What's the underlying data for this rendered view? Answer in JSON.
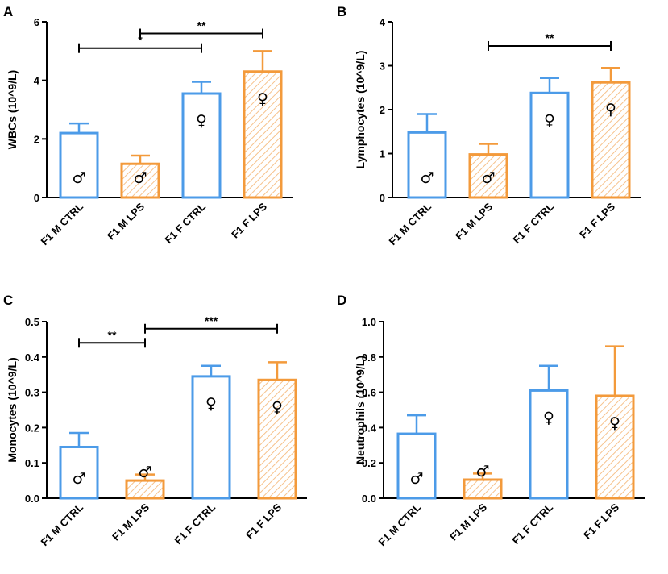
{
  "colors": {
    "ctrl": "#4c9be8",
    "lps": "#f39a3b",
    "lps_hatch": "#f6c28c",
    "axis": "#000000"
  },
  "symbols": {
    "male": "♂",
    "female": "♀"
  },
  "chart_data": [
    {
      "panel": "A",
      "type": "bar",
      "ylabel": "WBCs (10^9/L)",
      "categories": [
        "F1 M CTRL",
        "F1 M LPS",
        "F1 F CTRL",
        "F1 F LPS"
      ],
      "values": [
        2.2,
        1.15,
        3.55,
        4.3
      ],
      "errors": [
        0.33,
        0.28,
        0.4,
        0.7
      ],
      "groups": [
        "ctrl",
        "lps",
        "ctrl",
        "lps"
      ],
      "sex": [
        "male",
        "male",
        "female",
        "female"
      ],
      "ylim": [
        0,
        6
      ],
      "yticks": [
        "0",
        "2",
        "4",
        "6"
      ],
      "tick_values": [
        0,
        2,
        4,
        6
      ],
      "significance": [
        {
          "from": 0,
          "to": 2,
          "level": 5.1,
          "label": "*"
        },
        {
          "from": 1,
          "to": 3,
          "level": 5.6,
          "label": "**"
        }
      ]
    },
    {
      "panel": "B",
      "type": "bar",
      "ylabel": "Lymphocytes (10^9/L)",
      "categories": [
        "F1 M CTRL",
        "F1 M LPS",
        "F1 F CTRL",
        "F1 F LPS"
      ],
      "values": [
        1.48,
        0.98,
        2.38,
        2.62
      ],
      "errors": [
        0.42,
        0.24,
        0.34,
        0.33
      ],
      "groups": [
        "ctrl",
        "lps",
        "ctrl",
        "lps"
      ],
      "sex": [
        "male",
        "male",
        "female",
        "female"
      ],
      "ylim": [
        0,
        4
      ],
      "yticks": [
        "0",
        "1",
        "2",
        "3",
        "4"
      ],
      "tick_values": [
        0,
        1,
        2,
        3,
        4
      ],
      "significance": [
        {
          "from": 1,
          "to": 3,
          "level": 3.45,
          "label": "**"
        }
      ]
    },
    {
      "panel": "C",
      "type": "bar",
      "ylabel": "Monocytes (10^9/L)",
      "categories": [
        "F1 M CTRL",
        "F1 M LPS",
        "F1 F CTRL",
        "F1 F LPS"
      ],
      "values": [
        0.145,
        0.05,
        0.345,
        0.335
      ],
      "errors": [
        0.04,
        0.017,
        0.03,
        0.05
      ],
      "groups": [
        "ctrl",
        "lps",
        "ctrl",
        "lps"
      ],
      "sex": [
        "male",
        "male",
        "female",
        "female"
      ],
      "ylim": [
        0,
        0.5
      ],
      "yticks": [
        "0.0",
        "0.1",
        "0.2",
        "0.3",
        "0.4",
        "0.5"
      ],
      "tick_values": [
        0,
        0.1,
        0.2,
        0.3,
        0.4,
        0.5
      ],
      "significance": [
        {
          "from": 0,
          "to": 1,
          "level": 0.44,
          "label": "**"
        },
        {
          "from": 1,
          "to": 3,
          "level": 0.48,
          "label": "***"
        }
      ]
    },
    {
      "panel": "D",
      "type": "bar",
      "ylabel": "Neutrophils (10^9/L)",
      "categories": [
        "F1 M CTRL",
        "F1 M LPS",
        "F1 F CTRL",
        "F1 F LPS"
      ],
      "values": [
        0.365,
        0.105,
        0.61,
        0.58
      ],
      "errors": [
        0.105,
        0.035,
        0.14,
        0.28
      ],
      "groups": [
        "ctrl",
        "lps",
        "ctrl",
        "lps"
      ],
      "sex": [
        "male",
        "male",
        "female",
        "female"
      ],
      "ylim": [
        0,
        1.0
      ],
      "yticks": [
        "0.0",
        "0.2",
        "0.4",
        "0.6",
        "0.8",
        "1.0"
      ],
      "tick_values": [
        0,
        0.2,
        0.4,
        0.6,
        0.8,
        1.0
      ],
      "significance": []
    }
  ]
}
